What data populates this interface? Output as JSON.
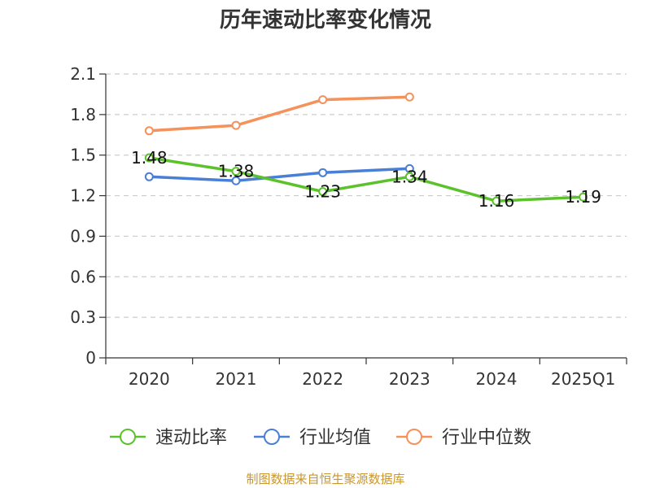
{
  "chart_data": {
    "type": "line",
    "title": "历年速动比率变化情况",
    "categories": [
      "2020",
      "2021",
      "2022",
      "2023",
      "2024",
      "2025Q1"
    ],
    "y_ticks": [
      "0",
      "0.3",
      "0.6",
      "0.9",
      "1.2",
      "1.5",
      "1.8",
      "2.1"
    ],
    "ylim": [
      0,
      2.1
    ],
    "grid": true,
    "legend_position": "bottom",
    "series": [
      {
        "name": "速动比率",
        "color": "#5cc22b",
        "values": [
          1.48,
          1.38,
          1.23,
          1.34,
          1.16,
          1.19
        ],
        "labels": [
          "1.48",
          "1.38",
          "1.23",
          "1.34",
          "1.16",
          "1.19"
        ]
      },
      {
        "name": "行业均值",
        "color": "#4a7fd6",
        "values": [
          1.34,
          1.31,
          1.37,
          1.4,
          null,
          null
        ]
      },
      {
        "name": "行业中位数",
        "color": "#f5915a",
        "values": [
          1.68,
          1.72,
          1.91,
          1.93,
          null,
          null
        ]
      }
    ]
  },
  "footer": {
    "source": "制图数据来自恒生聚源数据库"
  }
}
